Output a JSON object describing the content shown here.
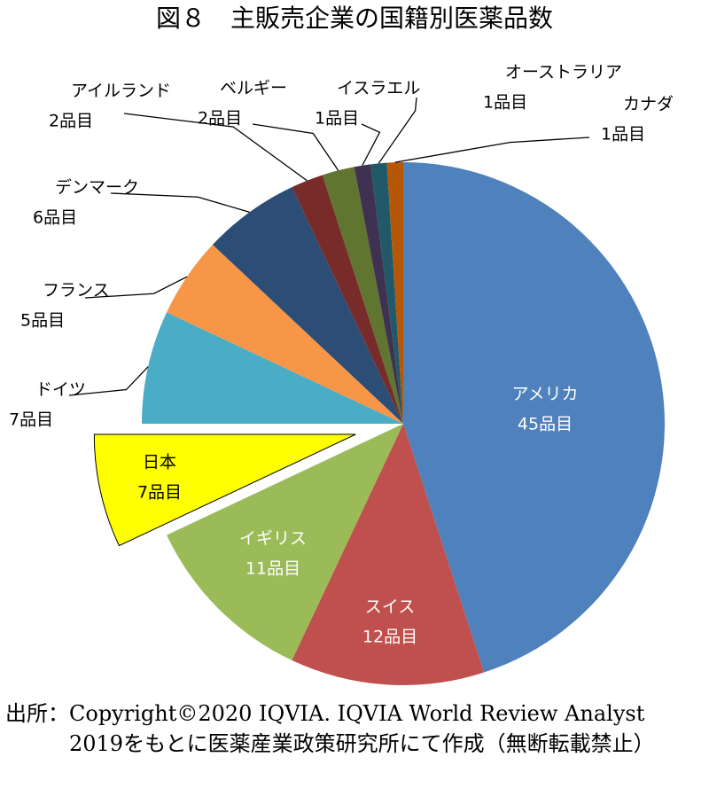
{
  "chart_data": {
    "type": "pie",
    "title": "図８　主販売企業の国籍別医薬品数",
    "categories": [
      "アメリカ",
      "スイス",
      "イギリス",
      "日本",
      "ドイツ",
      "フランス",
      "デンマーク",
      "アイルランド",
      "ベルギー",
      "イスラエル",
      "オーストラリア",
      "カナダ"
    ],
    "values": [
      45,
      12,
      11,
      7,
      7,
      5,
      6,
      2,
      2,
      1,
      1,
      1
    ],
    "value_labels": [
      "45品目",
      "12品目",
      "11品目",
      "7品目",
      "7品目",
      "5品目",
      "6品目",
      "2品目",
      "2品目",
      "1品目",
      "1品目",
      "1品目"
    ],
    "colors": [
      "#4f81bd",
      "#c0504d",
      "#9bbb59",
      "#ffff00",
      "#4bacc6",
      "#f79646",
      "#2c4d75",
      "#772c2a",
      "#5f7530",
      "#3f3151",
      "#215968",
      "#b65708"
    ],
    "exploded": "日本",
    "source_label": "出所：",
    "source": "Copyright©2020 IQVIA. IQVIA World Review Analyst 2019をもとに医薬産業政策研究所にて作成（無断転載禁止）"
  }
}
